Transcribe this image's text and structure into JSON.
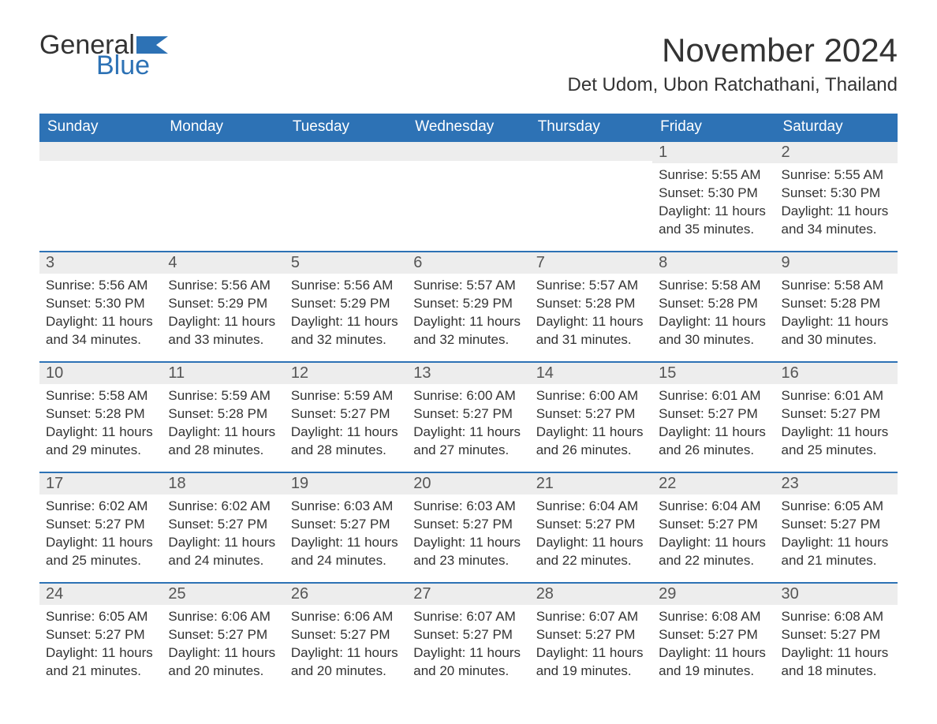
{
  "logo": {
    "word1": "General",
    "word2": "Blue"
  },
  "colors": {
    "header_bg": "#2d72b5",
    "header_text": "#ffffff",
    "daybar_bg": "#ededed",
    "daybar_border": "#2d72b5",
    "body_text": "#333333",
    "page_bg": "#ffffff"
  },
  "fonts": {
    "title_size_pt": 32,
    "location_size_pt": 18,
    "header_size_pt": 14,
    "daynum_size_pt": 15,
    "body_size_pt": 13
  },
  "title": "November 2024",
  "location": "Det Udom, Ubon Ratchathani, Thailand",
  "weekday_headers": [
    "Sunday",
    "Monday",
    "Tuesday",
    "Wednesday",
    "Thursday",
    "Friday",
    "Saturday"
  ],
  "first_weekday_index": 5,
  "days": [
    {
      "n": 1,
      "sunrise": "5:55 AM",
      "sunset": "5:30 PM",
      "daylight": "11 hours and 35 minutes."
    },
    {
      "n": 2,
      "sunrise": "5:55 AM",
      "sunset": "5:30 PM",
      "daylight": "11 hours and 34 minutes."
    },
    {
      "n": 3,
      "sunrise": "5:56 AM",
      "sunset": "5:30 PM",
      "daylight": "11 hours and 34 minutes."
    },
    {
      "n": 4,
      "sunrise": "5:56 AM",
      "sunset": "5:29 PM",
      "daylight": "11 hours and 33 minutes."
    },
    {
      "n": 5,
      "sunrise": "5:56 AM",
      "sunset": "5:29 PM",
      "daylight": "11 hours and 32 minutes."
    },
    {
      "n": 6,
      "sunrise": "5:57 AM",
      "sunset": "5:29 PM",
      "daylight": "11 hours and 32 minutes."
    },
    {
      "n": 7,
      "sunrise": "5:57 AM",
      "sunset": "5:28 PM",
      "daylight": "11 hours and 31 minutes."
    },
    {
      "n": 8,
      "sunrise": "5:58 AM",
      "sunset": "5:28 PM",
      "daylight": "11 hours and 30 minutes."
    },
    {
      "n": 9,
      "sunrise": "5:58 AM",
      "sunset": "5:28 PM",
      "daylight": "11 hours and 30 minutes."
    },
    {
      "n": 10,
      "sunrise": "5:58 AM",
      "sunset": "5:28 PM",
      "daylight": "11 hours and 29 minutes."
    },
    {
      "n": 11,
      "sunrise": "5:59 AM",
      "sunset": "5:28 PM",
      "daylight": "11 hours and 28 minutes."
    },
    {
      "n": 12,
      "sunrise": "5:59 AM",
      "sunset": "5:27 PM",
      "daylight": "11 hours and 28 minutes."
    },
    {
      "n": 13,
      "sunrise": "6:00 AM",
      "sunset": "5:27 PM",
      "daylight": "11 hours and 27 minutes."
    },
    {
      "n": 14,
      "sunrise": "6:00 AM",
      "sunset": "5:27 PM",
      "daylight": "11 hours and 26 minutes."
    },
    {
      "n": 15,
      "sunrise": "6:01 AM",
      "sunset": "5:27 PM",
      "daylight": "11 hours and 26 minutes."
    },
    {
      "n": 16,
      "sunrise": "6:01 AM",
      "sunset": "5:27 PM",
      "daylight": "11 hours and 25 minutes."
    },
    {
      "n": 17,
      "sunrise": "6:02 AM",
      "sunset": "5:27 PM",
      "daylight": "11 hours and 25 minutes."
    },
    {
      "n": 18,
      "sunrise": "6:02 AM",
      "sunset": "5:27 PM",
      "daylight": "11 hours and 24 minutes."
    },
    {
      "n": 19,
      "sunrise": "6:03 AM",
      "sunset": "5:27 PM",
      "daylight": "11 hours and 24 minutes."
    },
    {
      "n": 20,
      "sunrise": "6:03 AM",
      "sunset": "5:27 PM",
      "daylight": "11 hours and 23 minutes."
    },
    {
      "n": 21,
      "sunrise": "6:04 AM",
      "sunset": "5:27 PM",
      "daylight": "11 hours and 22 minutes."
    },
    {
      "n": 22,
      "sunrise": "6:04 AM",
      "sunset": "5:27 PM",
      "daylight": "11 hours and 22 minutes."
    },
    {
      "n": 23,
      "sunrise": "6:05 AM",
      "sunset": "5:27 PM",
      "daylight": "11 hours and 21 minutes."
    },
    {
      "n": 24,
      "sunrise": "6:05 AM",
      "sunset": "5:27 PM",
      "daylight": "11 hours and 21 minutes."
    },
    {
      "n": 25,
      "sunrise": "6:06 AM",
      "sunset": "5:27 PM",
      "daylight": "11 hours and 20 minutes."
    },
    {
      "n": 26,
      "sunrise": "6:06 AM",
      "sunset": "5:27 PM",
      "daylight": "11 hours and 20 minutes."
    },
    {
      "n": 27,
      "sunrise": "6:07 AM",
      "sunset": "5:27 PM",
      "daylight": "11 hours and 20 minutes."
    },
    {
      "n": 28,
      "sunrise": "6:07 AM",
      "sunset": "5:27 PM",
      "daylight": "11 hours and 19 minutes."
    },
    {
      "n": 29,
      "sunrise": "6:08 AM",
      "sunset": "5:27 PM",
      "daylight": "11 hours and 19 minutes."
    },
    {
      "n": 30,
      "sunrise": "6:08 AM",
      "sunset": "5:27 PM",
      "daylight": "11 hours and 18 minutes."
    }
  ],
  "labels": {
    "sunrise": "Sunrise:",
    "sunset": "Sunset:",
    "daylight": "Daylight:"
  }
}
